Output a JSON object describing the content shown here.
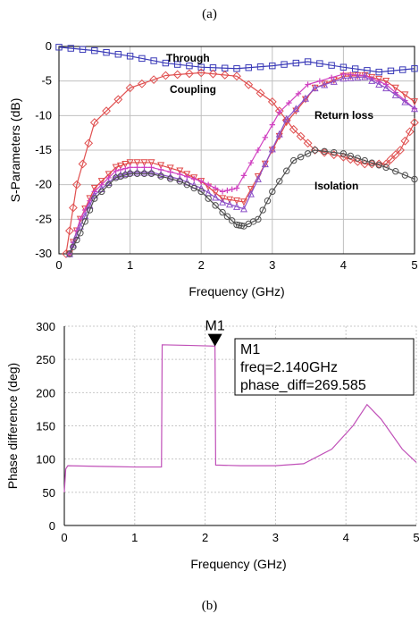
{
  "captions": {
    "a": "(a)",
    "b": "(b)"
  },
  "chart_data": [
    {
      "type": "line",
      "xlabel": "Frequency (GHz)",
      "ylabel": "S-Parameters (dB)",
      "xlim": [
        0,
        5
      ],
      "ylim": [
        -30,
        0
      ],
      "xticks": [
        "0",
        "1",
        "2",
        "3",
        "4",
        "5"
      ],
      "yticks": [
        "-30",
        "-25",
        "-20",
        "-15",
        "-10",
        "-5",
        "0"
      ],
      "grid": true,
      "annotations": [
        "Through",
        "Coupling",
        "Return loss",
        "Isolation"
      ],
      "series": [
        {
          "name": "Through",
          "color": "#3a3ab8",
          "marker": "square",
          "x": [
            0,
            0.5,
            1,
            1.5,
            2,
            2.5,
            3,
            3.5,
            4,
            4.5,
            5
          ],
          "y": [
            -0.1,
            -0.6,
            -1.4,
            -2.4,
            -3.0,
            -3.2,
            -2.8,
            -2.2,
            -3.0,
            -3.7,
            -3.2
          ]
        },
        {
          "name": "Coupling",
          "color": "#e05050",
          "marker": "diamond",
          "x": [
            0.1,
            0.25,
            0.5,
            1,
            1.5,
            2,
            2.5,
            3,
            3.3,
            3.6,
            4,
            4.3,
            4.6,
            4.8,
            5
          ],
          "y": [
            -30,
            -20,
            -11,
            -6,
            -4.2,
            -3.8,
            -4.3,
            -8,
            -12,
            -15,
            -16,
            -17,
            -17,
            -15,
            -11
          ]
        },
        {
          "name": "",
          "color": "#e04848",
          "marker": "triangle-down",
          "x": [
            0.15,
            0.3,
            0.5,
            0.8,
            1,
            1.3,
            1.7,
            2,
            2.3,
            2.6,
            2.9,
            3.2,
            3.6,
            4,
            4.3,
            4.6,
            5
          ],
          "y": [
            -30,
            -25,
            -20.5,
            -17.5,
            -16.8,
            -16.8,
            -18,
            -19.5,
            -22,
            -22.5,
            -17,
            -11,
            -6,
            -4.3,
            -4.2,
            -5,
            -8
          ]
        },
        {
          "name": "",
          "color": "#d040c0",
          "marker": "cross",
          "x": [
            0.15,
            0.3,
            0.5,
            0.8,
            1,
            1.3,
            1.7,
            2,
            2.3,
            2.5,
            2.8,
            3.1,
            3.5,
            4,
            4.3,
            4.6,
            5
          ],
          "y": [
            -30,
            -25,
            -21,
            -18,
            -17.5,
            -17.5,
            -18.5,
            -19.5,
            -21,
            -20.5,
            -15,
            -9.5,
            -5.5,
            -4,
            -4.2,
            -5.5,
            -9
          ]
        },
        {
          "name": "",
          "color": "#8c50c8",
          "marker": "triangle-up",
          "x": [
            0.15,
            0.3,
            0.5,
            0.8,
            1,
            1.3,
            1.7,
            2,
            2.3,
            2.6,
            2.9,
            3.2,
            3.6,
            4,
            4.3,
            4.6,
            5
          ],
          "y": [
            -30,
            -26,
            -21.5,
            -18.8,
            -18.2,
            -18.2,
            -19.2,
            -20.5,
            -22.5,
            -23.5,
            -17,
            -10.5,
            -6,
            -4.6,
            -4.4,
            -6,
            -9
          ]
        },
        {
          "name": "Isolation",
          "color": "#505050",
          "marker": "circle",
          "x": [
            0.15,
            0.3,
            0.5,
            0.8,
            1,
            1.3,
            1.7,
            2,
            2.3,
            2.5,
            2.6,
            2.8,
            3,
            3.3,
            3.6,
            4,
            4.3,
            4.6,
            5
          ],
          "y": [
            -30,
            -27,
            -22,
            -19,
            -18.4,
            -18.4,
            -19.5,
            -21,
            -24,
            -25.8,
            -26,
            -25,
            -21,
            -16.5,
            -15,
            -15.5,
            -16.5,
            -17.5,
            -19.2
          ]
        }
      ]
    },
    {
      "type": "line",
      "xlabel": "Frequency (GHz)",
      "ylabel": "Phase difference (deg)",
      "xlim": [
        0,
        5
      ],
      "ylim": [
        0,
        300
      ],
      "xticks": [
        "0",
        "1",
        "2",
        "3",
        "4",
        "5"
      ],
      "yticks": [
        "0",
        "50",
        "100",
        "150",
        "200",
        "250",
        "300"
      ],
      "grid": true,
      "marker": {
        "label": "M1",
        "x": 2.14,
        "y": 269.585
      },
      "marker_box": [
        "M1",
        "freq=2.140GHz",
        "phase_diff=269.585"
      ],
      "series": [
        {
          "name": "",
          "color": "#c050b8",
          "x": [
            0,
            0.02,
            0.05,
            0.5,
            1.0,
            1.38,
            1.39,
            1.8,
            2.14,
            2.15,
            2.5,
            3.0,
            3.4,
            3.8,
            4.1,
            4.3,
            4.5,
            4.8,
            5.0
          ],
          "y": [
            50,
            85,
            90,
            89,
            88,
            88,
            272,
            271,
            270,
            91,
            90,
            90,
            93,
            115,
            150,
            182,
            160,
            115,
            95
          ]
        }
      ]
    }
  ]
}
